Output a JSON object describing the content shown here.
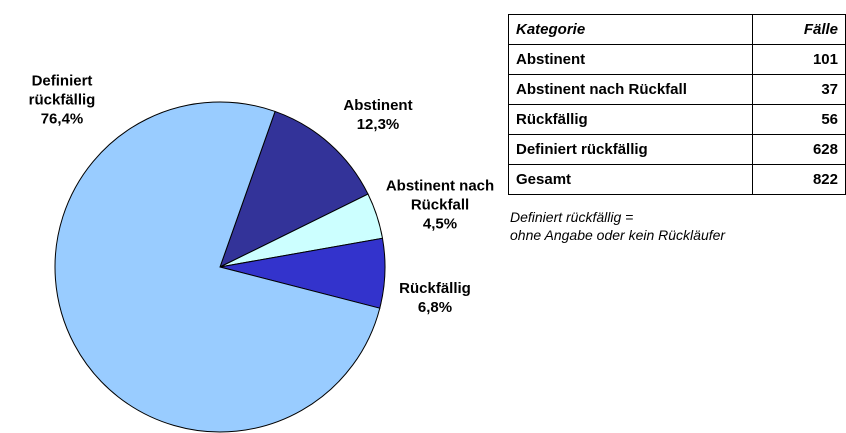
{
  "chart_data": {
    "type": "pie",
    "categories": [
      "Abstinent",
      "Abstinent nach Rückfall",
      "Rückfällig",
      "Definiert rückfällig"
    ],
    "values": [
      12.3,
      4.5,
      6.8,
      76.4
    ],
    "value_labels": [
      "12,3%",
      "4,5%",
      "6,8%",
      "76,4%"
    ],
    "colors": [
      "#333399",
      "#ccffff",
      "#3333cc",
      "#99ccff"
    ]
  },
  "table": {
    "header": [
      "Kategorie",
      "Fälle"
    ],
    "rows": [
      [
        "Abstinent",
        101
      ],
      [
        "Abstinent nach Rückfall",
        37
      ],
      [
        "Rückfällig",
        56
      ],
      [
        "Definiert rückfällig",
        628
      ],
      [
        "Gesamt",
        822
      ]
    ]
  },
  "note": [
    "Definiert rückfällig =",
    "ohne Angabe oder kein Rückläufer"
  ]
}
